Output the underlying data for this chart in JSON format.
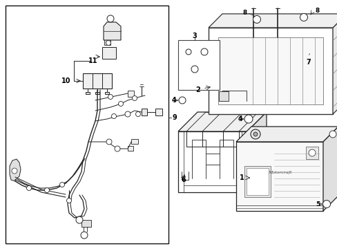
{
  "background_color": "#ffffff",
  "border_color": "#000000",
  "line_color": "#222222",
  "text_color": "#000000",
  "fig_width": 4.89,
  "fig_height": 3.6,
  "dpi": 100
}
